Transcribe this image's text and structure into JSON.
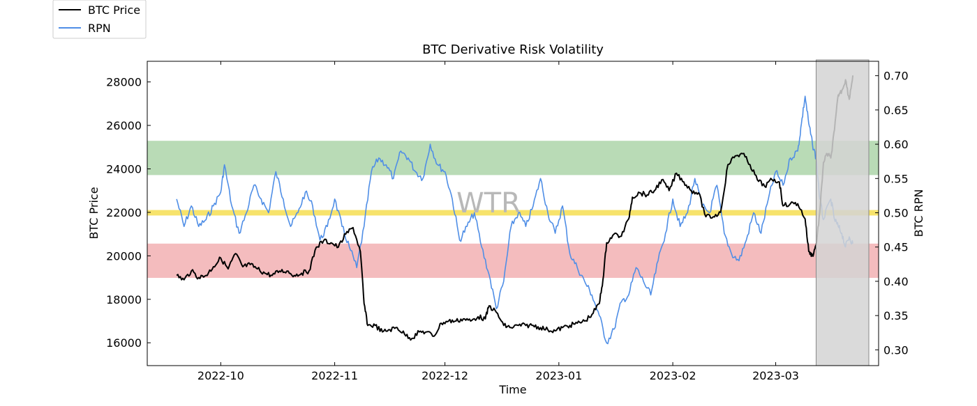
{
  "chart_data": {
    "type": "line",
    "title": "BTC Derivative Risk Volatility",
    "xlabel": "Time",
    "ylabel_left": "BTC Price",
    "ylabel_right": "BTC RPN",
    "watermark": "WTR",
    "x_ticks": [
      "2022-10",
      "2022-11",
      "2022-12",
      "2023-01",
      "2023-02",
      "2023-03"
    ],
    "y_left_ticks": [
      "16000",
      "18000",
      "20000",
      "22000",
      "24000",
      "26000",
      "28000"
    ],
    "y_right_ticks": [
      "0.30",
      "0.35",
      "0.40",
      "0.45",
      "0.50",
      "0.55",
      "0.60",
      "0.65",
      "0.70"
    ],
    "y_left_lim": [
      14950,
      28950
    ],
    "y_right_lim": [
      0.277,
      0.721
    ],
    "x_range": [
      "2022-09-11",
      "2023-03-29"
    ],
    "legend": [
      {
        "label": "BTC Price",
        "color": "#000000"
      },
      {
        "label": "RPN",
        "color": "#4f8ee6"
      }
    ],
    "bands": [
      {
        "name": "high-risk-zone",
        "y_from": 0.555,
        "y_to": 0.605,
        "color": "#b9dbb6"
      },
      {
        "name": "mid-line-zone",
        "y_from": 0.496,
        "y_to": 0.504,
        "color": "#f7e36b"
      },
      {
        "name": "low-risk-zone",
        "y_from": 0.405,
        "y_to": 0.455,
        "color": "#f4bcbe"
      }
    ],
    "highlight": {
      "x_from": "2023-03-12",
      "x_to": "2023-03-29",
      "color": "#d3d3d3"
    },
    "series": [
      {
        "name": "BTC Price",
        "axis": "left",
        "color": "#000000",
        "points": [
          [
            "2022-09-19",
            19100
          ],
          [
            "2022-09-21",
            18900
          ],
          [
            "2022-09-23",
            19300
          ],
          [
            "2022-09-25",
            19000
          ],
          [
            "2022-09-27",
            19100
          ],
          [
            "2022-09-29",
            19500
          ],
          [
            "2022-10-01",
            19900
          ],
          [
            "2022-10-03",
            19400
          ],
          [
            "2022-10-05",
            20100
          ],
          [
            "2022-10-07",
            19500
          ],
          [
            "2022-10-09",
            19600
          ],
          [
            "2022-10-11",
            19400
          ],
          [
            "2022-10-13",
            19200
          ],
          [
            "2022-10-15",
            19100
          ],
          [
            "2022-10-17",
            19300
          ],
          [
            "2022-10-19",
            19300
          ],
          [
            "2022-10-21",
            19100
          ],
          [
            "2022-10-23",
            19200
          ],
          [
            "2022-10-25",
            19300
          ],
          [
            "2022-10-27",
            20400
          ],
          [
            "2022-10-29",
            20700
          ],
          [
            "2022-10-31",
            20600
          ],
          [
            "2022-11-02",
            20400
          ],
          [
            "2022-11-04",
            21000
          ],
          [
            "2022-11-06",
            21300
          ],
          [
            "2022-11-08",
            20200
          ],
          [
            "2022-11-09",
            17800
          ],
          [
            "2022-11-10",
            16800
          ],
          [
            "2022-11-12",
            16800
          ],
          [
            "2022-11-14",
            16500
          ],
          [
            "2022-11-16",
            16600
          ],
          [
            "2022-11-18",
            16700
          ],
          [
            "2022-11-20",
            16400
          ],
          [
            "2022-11-22",
            16200
          ],
          [
            "2022-11-24",
            16500
          ],
          [
            "2022-11-26",
            16500
          ],
          [
            "2022-11-28",
            16300
          ],
          [
            "2022-11-30",
            16900
          ],
          [
            "2022-12-02",
            17000
          ],
          [
            "2022-12-04",
            17000
          ],
          [
            "2022-12-06",
            17100
          ],
          [
            "2022-12-08",
            17000
          ],
          [
            "2022-12-10",
            17200
          ],
          [
            "2022-12-12",
            17100
          ],
          [
            "2022-12-13",
            17700
          ],
          [
            "2022-12-15",
            17400
          ],
          [
            "2022-12-17",
            16800
          ],
          [
            "2022-12-19",
            16700
          ],
          [
            "2022-12-21",
            16800
          ],
          [
            "2022-12-23",
            16800
          ],
          [
            "2022-12-25",
            16800
          ],
          [
            "2022-12-27",
            16700
          ],
          [
            "2022-12-29",
            16600
          ],
          [
            "2022-12-31",
            16550
          ],
          [
            "2023-01-02",
            16700
          ],
          [
            "2023-01-04",
            16800
          ],
          [
            "2023-01-06",
            16900
          ],
          [
            "2023-01-08",
            17000
          ],
          [
            "2023-01-10",
            17300
          ],
          [
            "2023-01-12",
            17800
          ],
          [
            "2023-01-13",
            18900
          ],
          [
            "2023-01-14",
            20600
          ],
          [
            "2023-01-16",
            21000
          ],
          [
            "2023-01-18",
            20900
          ],
          [
            "2023-01-20",
            21700
          ],
          [
            "2023-01-21",
            22700
          ],
          [
            "2023-01-23",
            22900
          ],
          [
            "2023-01-25",
            22800
          ],
          [
            "2023-01-27",
            23000
          ],
          [
            "2023-01-29",
            23500
          ],
          [
            "2023-01-31",
            23000
          ],
          [
            "2023-02-02",
            23800
          ],
          [
            "2023-02-04",
            23400
          ],
          [
            "2023-02-06",
            23000
          ],
          [
            "2023-02-08",
            22900
          ],
          [
            "2023-02-10",
            21800
          ],
          [
            "2023-02-12",
            21800
          ],
          [
            "2023-02-14",
            22000
          ],
          [
            "2023-02-16",
            24200
          ],
          [
            "2023-02-18",
            24600
          ],
          [
            "2023-02-20",
            24700
          ],
          [
            "2023-02-22",
            24200
          ],
          [
            "2023-02-24",
            23500
          ],
          [
            "2023-02-26",
            23200
          ],
          [
            "2023-02-28",
            23500
          ],
          [
            "2023-03-02",
            23400
          ],
          [
            "2023-03-03",
            22300
          ],
          [
            "2023-03-05",
            22400
          ],
          [
            "2023-03-07",
            22400
          ],
          [
            "2023-03-09",
            21700
          ],
          [
            "2023-03-10",
            20200
          ],
          [
            "2023-03-11",
            20000
          ],
          [
            "2023-03-12",
            20500
          ],
          [
            "2023-03-13",
            22000
          ],
          [
            "2023-03-14",
            24300
          ],
          [
            "2023-03-15",
            24700
          ],
          [
            "2023-03-16",
            24500
          ],
          [
            "2023-03-17",
            25800
          ],
          [
            "2023-03-18",
            27400
          ],
          [
            "2023-03-19",
            27600
          ],
          [
            "2023-03-20",
            28100
          ],
          [
            "2023-03-21",
            27200
          ],
          [
            "2023-03-22",
            28300
          ]
        ]
      },
      {
        "name": "RPN",
        "axis": "right",
        "color": "#4f8ee6",
        "points": [
          [
            "2022-09-19",
            0.52
          ],
          [
            "2022-09-21",
            0.48
          ],
          [
            "2022-09-23",
            0.51
          ],
          [
            "2022-09-25",
            0.48
          ],
          [
            "2022-09-27",
            0.49
          ],
          [
            "2022-09-29",
            0.51
          ],
          [
            "2022-10-01",
            0.53
          ],
          [
            "2022-10-02",
            0.57
          ],
          [
            "2022-10-04",
            0.51
          ],
          [
            "2022-10-06",
            0.47
          ],
          [
            "2022-10-08",
            0.5
          ],
          [
            "2022-10-10",
            0.54
          ],
          [
            "2022-10-12",
            0.52
          ],
          [
            "2022-10-14",
            0.5
          ],
          [
            "2022-10-16",
            0.56
          ],
          [
            "2022-10-18",
            0.52
          ],
          [
            "2022-10-20",
            0.48
          ],
          [
            "2022-10-22",
            0.5
          ],
          [
            "2022-10-24",
            0.53
          ],
          [
            "2022-10-26",
            0.51
          ],
          [
            "2022-10-28",
            0.46
          ],
          [
            "2022-10-30",
            0.48
          ],
          [
            "2022-11-01",
            0.52
          ],
          [
            "2022-11-03",
            0.48
          ],
          [
            "2022-11-05",
            0.45
          ],
          [
            "2022-11-07",
            0.42
          ],
          [
            "2022-11-09",
            0.48
          ],
          [
            "2022-11-11",
            0.56
          ],
          [
            "2022-11-13",
            0.58
          ],
          [
            "2022-11-15",
            0.57
          ],
          [
            "2022-11-17",
            0.55
          ],
          [
            "2022-11-19",
            0.59
          ],
          [
            "2022-11-21",
            0.58
          ],
          [
            "2022-11-23",
            0.56
          ],
          [
            "2022-11-25",
            0.55
          ],
          [
            "2022-11-27",
            0.6
          ],
          [
            "2022-11-29",
            0.57
          ],
          [
            "2022-12-01",
            0.56
          ],
          [
            "2022-12-03",
            0.52
          ],
          [
            "2022-12-05",
            0.46
          ],
          [
            "2022-12-07",
            0.48
          ],
          [
            "2022-12-09",
            0.5
          ],
          [
            "2022-12-11",
            0.45
          ],
          [
            "2022-12-13",
            0.41
          ],
          [
            "2022-12-15",
            0.36
          ],
          [
            "2022-12-17",
            0.4
          ],
          [
            "2022-12-19",
            0.48
          ],
          [
            "2022-12-21",
            0.5
          ],
          [
            "2022-12-23",
            0.48
          ],
          [
            "2022-12-25",
            0.51
          ],
          [
            "2022-12-27",
            0.55
          ],
          [
            "2022-12-29",
            0.5
          ],
          [
            "2022-12-31",
            0.47
          ],
          [
            "2023-01-02",
            0.51
          ],
          [
            "2023-01-04",
            0.44
          ],
          [
            "2023-01-06",
            0.42
          ],
          [
            "2023-01-08",
            0.4
          ],
          [
            "2023-01-10",
            0.38
          ],
          [
            "2023-01-12",
            0.35
          ],
          [
            "2023-01-14",
            0.31
          ],
          [
            "2023-01-16",
            0.33
          ],
          [
            "2023-01-18",
            0.37
          ],
          [
            "2023-01-20",
            0.38
          ],
          [
            "2023-01-22",
            0.42
          ],
          [
            "2023-01-24",
            0.4
          ],
          [
            "2023-01-26",
            0.38
          ],
          [
            "2023-01-28",
            0.43
          ],
          [
            "2023-01-30",
            0.47
          ],
          [
            "2023-02-01",
            0.52
          ],
          [
            "2023-02-03",
            0.48
          ],
          [
            "2023-02-05",
            0.5
          ],
          [
            "2023-02-07",
            0.55
          ],
          [
            "2023-02-09",
            0.51
          ],
          [
            "2023-02-11",
            0.5
          ],
          [
            "2023-02-13",
            0.54
          ],
          [
            "2023-02-15",
            0.47
          ],
          [
            "2023-02-17",
            0.44
          ],
          [
            "2023-02-19",
            0.43
          ],
          [
            "2023-02-21",
            0.46
          ],
          [
            "2023-02-23",
            0.5
          ],
          [
            "2023-02-25",
            0.47
          ],
          [
            "2023-02-27",
            0.52
          ],
          [
            "2023-03-01",
            0.56
          ],
          [
            "2023-03-03",
            0.54
          ],
          [
            "2023-03-05",
            0.58
          ],
          [
            "2023-03-07",
            0.59
          ],
          [
            "2023-03-08",
            0.63
          ],
          [
            "2023-03-09",
            0.67
          ],
          [
            "2023-03-10",
            0.63
          ],
          [
            "2023-03-11",
            0.6
          ],
          [
            "2023-03-12",
            0.58
          ],
          [
            "2023-03-13",
            0.52
          ],
          [
            "2023-03-14",
            0.49
          ],
          [
            "2023-03-16",
            0.52
          ],
          [
            "2023-03-17",
            0.49
          ],
          [
            "2023-03-18",
            0.48
          ],
          [
            "2023-03-19",
            0.47
          ],
          [
            "2023-03-20",
            0.45
          ],
          [
            "2023-03-21",
            0.465
          ],
          [
            "2023-03-22",
            0.455
          ]
        ]
      }
    ]
  }
}
